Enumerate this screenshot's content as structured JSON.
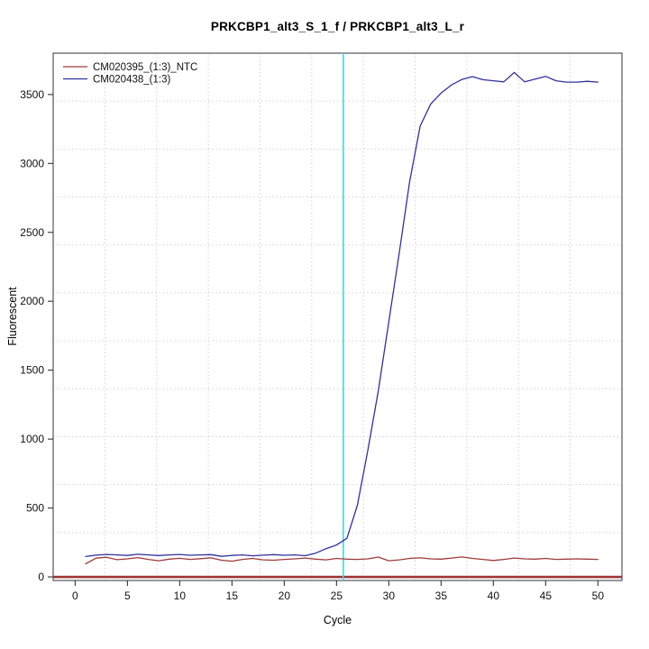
{
  "chart_data": {
    "type": "line",
    "title": "PRKCBP1_alt3_S_1_f / PRKCBP1_alt3_L_r",
    "xlabel": "Cycle",
    "ylabel": "Fluorescent",
    "xlim": [
      -2.1,
      52.3
    ],
    "ylim": [
      -26,
      3800
    ],
    "x_ticks": [
      0,
      5,
      10,
      15,
      20,
      25,
      30,
      35,
      40,
      45,
      50
    ],
    "y_ticks": [
      0,
      500,
      1000,
      1500,
      2000,
      2500,
      3000,
      3500
    ],
    "grid": {
      "divisions": 11,
      "color": "#c9c9c9",
      "style": "dotted",
      "on": true
    },
    "legend": {
      "position": "top-left"
    },
    "x": [
      1,
      2,
      3,
      4,
      5,
      6,
      7,
      8,
      9,
      10,
      11,
      12,
      13,
      14,
      15,
      16,
      17,
      18,
      19,
      20,
      21,
      22,
      23,
      24,
      25,
      26,
      27,
      28,
      29,
      30,
      31,
      32,
      33,
      34,
      35,
      36,
      37,
      38,
      39,
      40,
      41,
      42,
      43,
      44,
      45,
      46,
      47,
      48,
      49,
      50
    ],
    "series": [
      {
        "name": "CM020395_(1:3)_NTC",
        "color": "#9e3a3a",
        "values": [
          95,
          136,
          143,
          125,
          131,
          140,
          127,
          117,
          129,
          135,
          127,
          132,
          138,
          121,
          114,
          127,
          134,
          124,
          121,
          127,
          131,
          137,
          129,
          124,
          134,
          129,
          127,
          131,
          144,
          117,
          124,
          134,
          138,
          131,
          129,
          137,
          145,
          134,
          127,
          119,
          127,
          137,
          131,
          129,
          134,
          127,
          129,
          131,
          129,
          127
        ]
      },
      {
        "name": "CM020438_(1:3)",
        "color": "#31319e",
        "values": [
          148,
          158,
          163,
          160,
          156,
          164,
          160,
          155,
          160,
          163,
          157,
          160,
          162,
          149,
          156,
          160,
          153,
          158,
          162,
          157,
          160,
          154,
          172,
          205,
          232,
          280,
          520,
          920,
          1350,
          1850,
          2350,
          2870,
          3270,
          3430,
          3510,
          3570,
          3610,
          3630,
          3608,
          3600,
          3592,
          3660,
          3592,
          3612,
          3632,
          3600,
          3590,
          3590,
          3596,
          3590
        ]
      }
    ],
    "threshold_line": {
      "y": 0,
      "color": "#9c3535"
    },
    "marker_line": {
      "x": 25.65,
      "color": "#2fdfeb"
    },
    "axis_color": "#555555",
    "tick_color": "#333333",
    "label_color": "#111111"
  }
}
